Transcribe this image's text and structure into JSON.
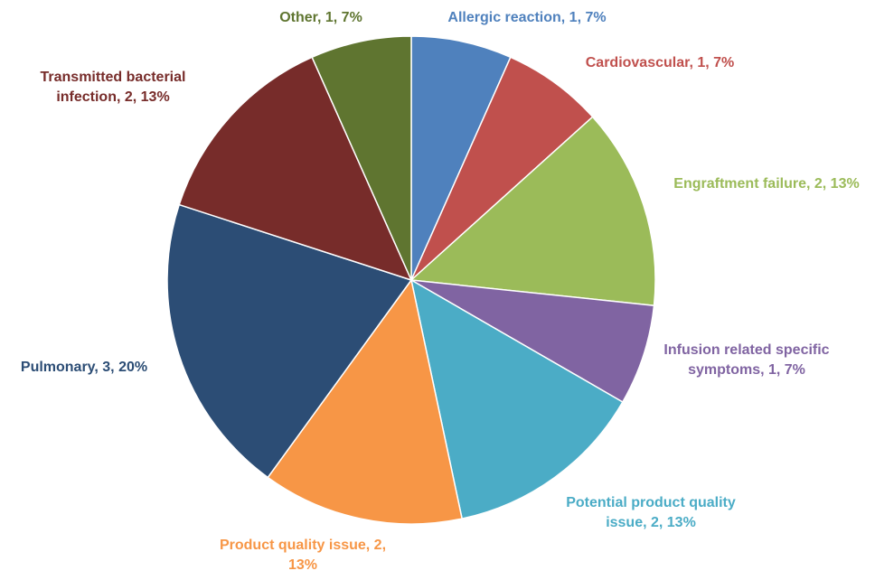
{
  "chart_data": {
    "type": "pie",
    "categories": [
      "Allergic reaction",
      "Cardiovascular",
      "Engraftment failure",
      "Infusion related specific symptoms",
      "Potential product quality issue",
      "Product quality issue",
      "Pulmonary",
      "Transmitted bacterial infection",
      "Other"
    ],
    "values": [
      1,
      1,
      2,
      1,
      2,
      2,
      3,
      2,
      1
    ],
    "value_labels": [
      "Allergic reaction, 1, 7%",
      "Cardiovascular, 1, 7%",
      "Engraftment failure, 2, 13%",
      "Infusion related specific symptoms, 1, 7%",
      "Potential product quality issue, 2, 13%",
      "Product quality issue, 2, 13%",
      "Pulmonary, 3, 20%",
      "Transmitted bacterial infection, 2, 13%",
      "Other, 1, 7%"
    ],
    "colors": [
      "#4f81bd",
      "#c0504d",
      "#9bbb59",
      "#8064a2",
      "#4bacc6",
      "#f79646",
      "#2c4d75",
      "#772c2a",
      "#5f7530"
    ]
  }
}
